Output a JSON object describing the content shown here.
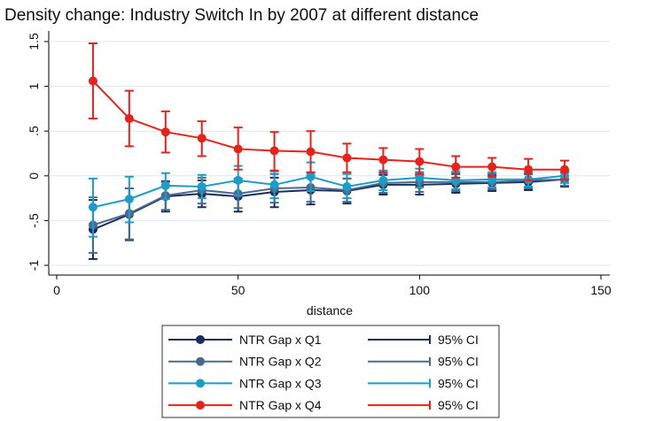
{
  "chart_data": {
    "type": "line",
    "title": "Density change: Industry Switch In by 2007 at different distance",
    "x_label": "distance",
    "x": [
      10,
      20,
      30,
      40,
      50,
      60,
      70,
      80,
      90,
      100,
      110,
      120,
      130,
      140
    ],
    "xlim": [
      0,
      150
    ],
    "xticks": [
      0,
      50,
      100,
      150
    ],
    "ylim": [
      -1,
      1.5
    ],
    "yticks": [
      -1,
      {
        "value": -0.5,
        "label": "-.5"
      },
      0,
      {
        "value": 0.5,
        "label": ".5"
      },
      1,
      1.5
    ],
    "series": [
      {
        "name": "NTR Gap x Q1",
        "ci_name": "95% CI",
        "color": "#1b2d5c",
        "values": [
          -0.6,
          -0.43,
          -0.23,
          -0.2,
          -0.23,
          -0.18,
          -0.16,
          -0.17,
          -0.1,
          -0.1,
          -0.09,
          -0.08,
          -0.07,
          -0.04
        ],
        "lower": [
          -0.93,
          -0.72,
          -0.4,
          -0.35,
          -0.4,
          -0.35,
          -0.32,
          -0.31,
          -0.21,
          -0.21,
          -0.19,
          -0.17,
          -0.16,
          -0.12
        ],
        "upper": [
          -0.27,
          -0.14,
          -0.06,
          -0.05,
          -0.07,
          -0.02,
          0.0,
          -0.03,
          0.01,
          0.01,
          0.02,
          0.01,
          0.02,
          0.04
        ]
      },
      {
        "name": "NTR Gap x Q2",
        "ci_name": "95% CI",
        "color": "#4a6a8c",
        "values": [
          -0.55,
          -0.42,
          -0.22,
          -0.16,
          -0.2,
          -0.14,
          -0.13,
          -0.16,
          -0.08,
          -0.07,
          -0.07,
          -0.07,
          -0.05,
          -0.04
        ],
        "lower": [
          -0.86,
          -0.71,
          -0.38,
          -0.31,
          -0.36,
          -0.3,
          -0.29,
          -0.29,
          -0.19,
          -0.18,
          -0.17,
          -0.15,
          -0.14,
          -0.11
        ],
        "upper": [
          -0.24,
          -0.14,
          -0.07,
          -0.02,
          -0.03,
          0.02,
          0.03,
          -0.03,
          0.03,
          0.04,
          0.03,
          0.02,
          0.03,
          0.04
        ]
      },
      {
        "name": "NTR Gap x Q3",
        "ci_name": "95% CI",
        "color": "#1c9dc9",
        "values": [
          -0.35,
          -0.26,
          -0.11,
          -0.12,
          -0.05,
          -0.1,
          -0.01,
          -0.12,
          -0.05,
          -0.02,
          -0.05,
          -0.04,
          -0.04,
          0.0
        ],
        "lower": [
          -0.68,
          -0.52,
          -0.26,
          -0.25,
          -0.22,
          -0.25,
          -0.17,
          -0.25,
          -0.16,
          -0.13,
          -0.15,
          -0.13,
          -0.12,
          -0.08
        ],
        "upper": [
          -0.03,
          -0.01,
          0.03,
          0.01,
          0.11,
          0.05,
          0.15,
          0.02,
          0.06,
          0.08,
          0.05,
          0.04,
          0.04,
          0.07
        ]
      },
      {
        "name": "NTR Gap x Q4",
        "ci_name": "95% CI",
        "color": "#e8221a",
        "values": [
          1.06,
          0.64,
          0.49,
          0.42,
          0.3,
          0.28,
          0.27,
          0.2,
          0.18,
          0.16,
          0.1,
          0.1,
          0.07,
          0.07
        ],
        "lower": [
          0.64,
          0.33,
          0.26,
          0.22,
          0.07,
          0.06,
          0.04,
          0.04,
          0.04,
          0.02,
          -0.02,
          -0.01,
          -0.05,
          -0.04
        ],
        "upper": [
          1.48,
          0.95,
          0.72,
          0.61,
          0.54,
          0.49,
          0.5,
          0.36,
          0.31,
          0.3,
          0.22,
          0.2,
          0.19,
          0.17
        ]
      }
    ]
  }
}
